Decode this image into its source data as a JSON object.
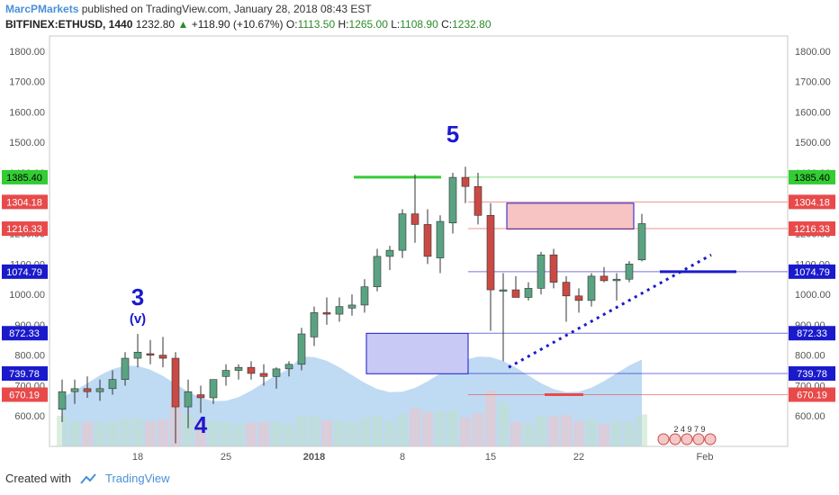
{
  "header": {
    "author": "MarcPMarkets",
    "published_text": "published on TradingView.com, January 28, 2018 08:43 EST",
    "symbol": "BITFINEX:ETHUSD, 1440",
    "last": "1232.80",
    "change_arrow": "▲",
    "change": "+118.90 (+10.67%)",
    "o_label": "O:",
    "o_value": "1113.50",
    "h_label": "H:",
    "h_value": "1265.00",
    "l_label": "L:",
    "l_value": "1108.90",
    "c_label": "C:",
    "c_value": "1232.80"
  },
  "footer": {
    "created_with": "Created with",
    "brand": "TradingView"
  },
  "colors": {
    "up": "#5aa382",
    "down": "#c94a44",
    "volume": "#a9cdef",
    "green_line": "#33cc33",
    "red_zone": "#f7c3c3",
    "blue_zone": "#c9c9f5",
    "blue_line": "#1a1acc"
  },
  "chart_data": {
    "type": "candlestick",
    "ylim": [
      500,
      1850
    ],
    "y_ticks": [
      "1800.00",
      "1700.00",
      "1600.00",
      "1500.00",
      "1400.00",
      "1300.00",
      "1200.00",
      "1100.00",
      "1000.00",
      "900.00",
      "800.00",
      "700.00",
      "600.00"
    ],
    "x_ticks": [
      {
        "label": "18",
        "day": 18
      },
      {
        "label": "25",
        "day": 25
      },
      {
        "label": "2018",
        "day": 32
      },
      {
        "label": "8",
        "day": 39
      },
      {
        "label": "15",
        "day": 46
      },
      {
        "label": "22",
        "day": 53
      },
      {
        "label": "Feb",
        "day": 63
      }
    ],
    "candles": [
      {
        "d": 12,
        "o": 622,
        "h": 720,
        "l": 580,
        "c": 680
      },
      {
        "d": 13,
        "o": 680,
        "h": 720,
        "l": 640,
        "c": 690
      },
      {
        "d": 14,
        "o": 690,
        "h": 730,
        "l": 660,
        "c": 680
      },
      {
        "d": 15,
        "o": 680,
        "h": 720,
        "l": 650,
        "c": 690
      },
      {
        "d": 16,
        "o": 690,
        "h": 750,
        "l": 670,
        "c": 720
      },
      {
        "d": 17,
        "o": 720,
        "h": 810,
        "l": 700,
        "c": 790
      },
      {
        "d": 18,
        "o": 790,
        "h": 870,
        "l": 760,
        "c": 810
      },
      {
        "d": 19,
        "o": 805,
        "h": 850,
        "l": 770,
        "c": 800
      },
      {
        "d": 20,
        "o": 800,
        "h": 860,
        "l": 760,
        "c": 790
      },
      {
        "d": 21,
        "o": 790,
        "h": 810,
        "l": 510,
        "c": 630
      },
      {
        "d": 22,
        "o": 630,
        "h": 720,
        "l": 560,
        "c": 680
      },
      {
        "d": 23,
        "o": 670,
        "h": 700,
        "l": 610,
        "c": 660
      },
      {
        "d": 24,
        "o": 660,
        "h": 720,
        "l": 640,
        "c": 720
      },
      {
        "d": 25,
        "o": 730,
        "h": 770,
        "l": 700,
        "c": 750
      },
      {
        "d": 26,
        "o": 750,
        "h": 770,
        "l": 720,
        "c": 760
      },
      {
        "d": 27,
        "o": 760,
        "h": 780,
        "l": 720,
        "c": 740
      },
      {
        "d": 28,
        "o": 740,
        "h": 770,
        "l": 700,
        "c": 730
      },
      {
        "d": 29,
        "o": 730,
        "h": 760,
        "l": 690,
        "c": 755
      },
      {
        "d": 30,
        "o": 755,
        "h": 780,
        "l": 730,
        "c": 770
      },
      {
        "d": 31,
        "o": 770,
        "h": 890,
        "l": 750,
        "c": 870
      },
      {
        "d": 32,
        "o": 860,
        "h": 960,
        "l": 830,
        "c": 940
      },
      {
        "d": 33,
        "o": 940,
        "h": 990,
        "l": 900,
        "c": 935
      },
      {
        "d": 34,
        "o": 935,
        "h": 990,
        "l": 910,
        "c": 960
      },
      {
        "d": 35,
        "o": 955,
        "h": 1000,
        "l": 930,
        "c": 965
      },
      {
        "d": 36,
        "o": 965,
        "h": 1050,
        "l": 940,
        "c": 1025
      },
      {
        "d": 37,
        "o": 1025,
        "h": 1150,
        "l": 1010,
        "c": 1125
      },
      {
        "d": 38,
        "o": 1125,
        "h": 1160,
        "l": 1080,
        "c": 1145
      },
      {
        "d": 39,
        "o": 1145,
        "h": 1280,
        "l": 1120,
        "c": 1265
      },
      {
        "d": 40,
        "o": 1265,
        "h": 1395,
        "l": 1170,
        "c": 1230
      },
      {
        "d": 41,
        "o": 1230,
        "h": 1280,
        "l": 1100,
        "c": 1125
      },
      {
        "d": 42,
        "o": 1120,
        "h": 1260,
        "l": 1070,
        "c": 1240
      },
      {
        "d": 43,
        "o": 1235,
        "h": 1400,
        "l": 1200,
        "c": 1385
      },
      {
        "d": 44,
        "o": 1385,
        "h": 1420,
        "l": 1300,
        "c": 1355
      },
      {
        "d": 45,
        "o": 1355,
        "h": 1400,
        "l": 1230,
        "c": 1260
      },
      {
        "d": 46,
        "o": 1260,
        "h": 1300,
        "l": 880,
        "c": 1015
      },
      {
        "d": 47,
        "o": 1015,
        "h": 1070,
        "l": 780,
        "c": 1015
      },
      {
        "d": 48,
        "o": 1015,
        "h": 1060,
        "l": 990,
        "c": 990
      },
      {
        "d": 49,
        "o": 990,
        "h": 1040,
        "l": 980,
        "c": 1020
      },
      {
        "d": 50,
        "o": 1020,
        "h": 1140,
        "l": 1000,
        "c": 1130
      },
      {
        "d": 51,
        "o": 1130,
        "h": 1150,
        "l": 1020,
        "c": 1040
      },
      {
        "d": 52,
        "o": 1040,
        "h": 1060,
        "l": 910,
        "c": 995
      },
      {
        "d": 53,
        "o": 995,
        "h": 1020,
        "l": 940,
        "c": 980
      },
      {
        "d": 54,
        "o": 980,
        "h": 1070,
        "l": 960,
        "c": 1060
      },
      {
        "d": 55,
        "o": 1060,
        "h": 1090,
        "l": 1040,
        "c": 1045
      },
      {
        "d": 56,
        "o": 1045,
        "h": 1070,
        "l": 980,
        "c": 1050
      },
      {
        "d": 57,
        "o": 1050,
        "h": 1110,
        "l": 1040,
        "c": 1100
      },
      {
        "d": 58,
        "o": 1113.5,
        "h": 1265,
        "l": 1108.9,
        "c": 1232.8
      }
    ],
    "horizontal_lines": [
      {
        "label": "1385.40",
        "price": 1385.4,
        "tag_color": "#33cc33",
        "text_color": "#000000"
      },
      {
        "label": "1304.18",
        "price": 1304.18,
        "tag_color": "#e84a4a",
        "text_color": "#ffffff"
      },
      {
        "label": "1216.33",
        "price": 1216.33,
        "tag_color": "#e84a4a",
        "text_color": "#ffffff"
      },
      {
        "label": "1074.79",
        "price": 1074.79,
        "tag_color": "#1a1acc",
        "text_color": "#ffffff"
      },
      {
        "label": "872.33",
        "price": 872.33,
        "tag_color": "#1a1acc",
        "text_color": "#ffffff"
      },
      {
        "label": "739.78",
        "price": 739.78,
        "tag_color": "#1a1acc",
        "text_color": "#ffffff"
      },
      {
        "label": "670.19",
        "price": 670.19,
        "tag_color": "#e84a4a",
        "text_color": "#ffffff"
      }
    ],
    "annotations": [
      {
        "text": "5",
        "day": 43,
        "price": 1500
      },
      {
        "text": "3",
        "day": 18,
        "price": 965
      },
      {
        "text": "(v)",
        "day": 18,
        "price": 905
      },
      {
        "text": "4",
        "day": 23,
        "price": 545
      }
    ],
    "event_label": "2 4 9 7 9"
  }
}
